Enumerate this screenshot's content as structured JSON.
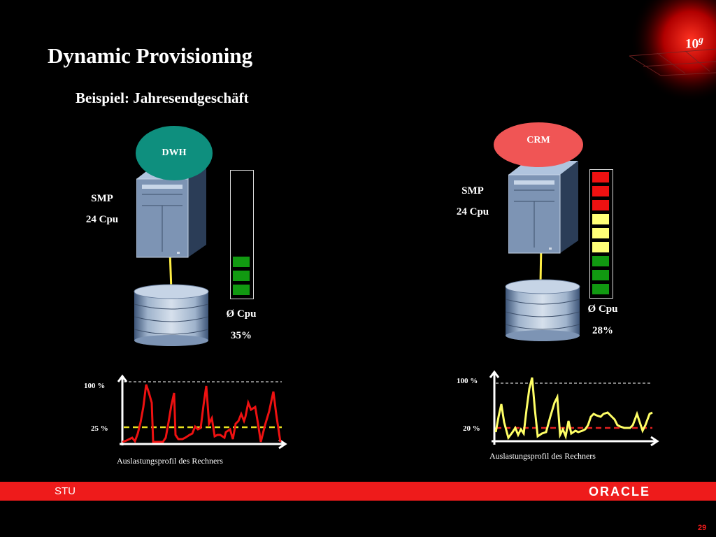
{
  "slide": {
    "title": "Dynamic Provisioning",
    "subtitle": "Beispiel: Jahresendgeschäft",
    "logo": {
      "main": "10",
      "sup": "g"
    },
    "footer_left": "STU",
    "footer_brand": "ORACLE",
    "page_number": "29"
  },
  "left_panel": {
    "oval_label": "DWH",
    "oval_color": "#0e8f7e",
    "server_text": [
      "SMP",
      "24 Cpu"
    ],
    "cpu_label": "Ø Cpu",
    "cpu_value": "35%",
    "meter_cells": [
      "empty",
      "empty",
      "empty",
      "empty",
      "empty",
      "empty",
      "empty",
      "green",
      "green",
      "green"
    ],
    "chart": {
      "y_label_top": "100 %",
      "y_label_ref": "25 %",
      "caption": "Auslastungsprofil des Rechners",
      "line_color": "#ee1111",
      "ref_color": "#e8e020"
    }
  },
  "right_panel": {
    "oval_label": "CRM",
    "oval_color": "#f05555",
    "server_text": [
      "SMP",
      "24 Cpu"
    ],
    "cpu_label": "Ø Cpu",
    "cpu_value": "28%",
    "meter_cells": [
      "red",
      "red",
      "red",
      "yellow",
      "yellow",
      "yellow",
      "green",
      "green",
      "green"
    ],
    "chart": {
      "y_label_top": "100 %",
      "y_label_ref": "20 %",
      "caption": "Auslastungsprofil des Rechners",
      "line_color": "#ffff66",
      "ref_color": "#e02020"
    }
  },
  "colors": {
    "footer_red": "#ee1b1b",
    "meter_red": "#ee1111",
    "meter_yellow": "#ffff77",
    "meter_green": "#119911"
  }
}
